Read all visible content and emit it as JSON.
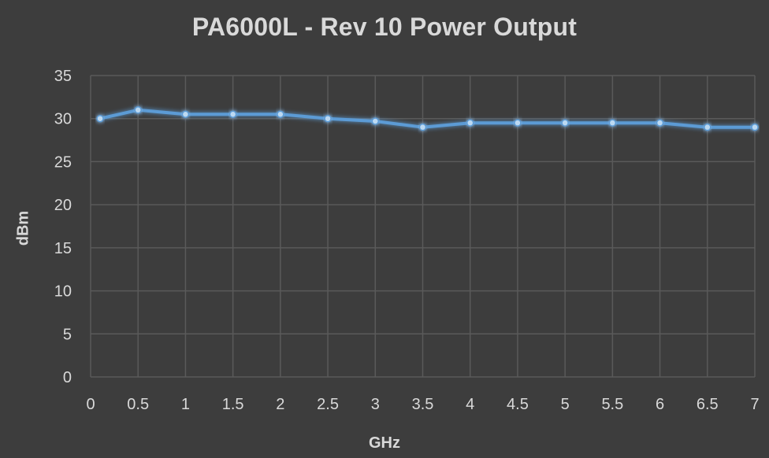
{
  "chart_data": {
    "type": "line",
    "title": "PA6000L - Rev 10 Power Output",
    "xlabel": "GHz",
    "ylabel": "dBm",
    "x_ticks": [
      "0",
      "0.5",
      "1",
      "1.5",
      "2",
      "2.5",
      "3",
      "3.5",
      "4",
      "4.5",
      "5",
      "5.5",
      "6",
      "6.5",
      "7"
    ],
    "y_ticks": [
      "0",
      "5",
      "10",
      "15",
      "20",
      "25",
      "30",
      "35"
    ],
    "xlim": [
      0,
      7
    ],
    "ylim": [
      0,
      35
    ],
    "grid": true,
    "series": [
      {
        "color": "#5b9bd5",
        "x": [
          0.1,
          0.5,
          1,
          1.5,
          2,
          2.5,
          3,
          3.5,
          4,
          4.5,
          5,
          5.5,
          6,
          6.5,
          7
        ],
        "values": [
          30,
          31,
          30.5,
          30.5,
          30.5,
          30,
          29.7,
          29,
          29.5,
          29.5,
          29.5,
          29.5,
          29.5,
          29,
          29
        ]
      }
    ]
  },
  "colors": {
    "background": "#3d3d3d",
    "grid": "#5a5a5a",
    "text": "#d9d9d9",
    "line": "#5b9bd5"
  }
}
